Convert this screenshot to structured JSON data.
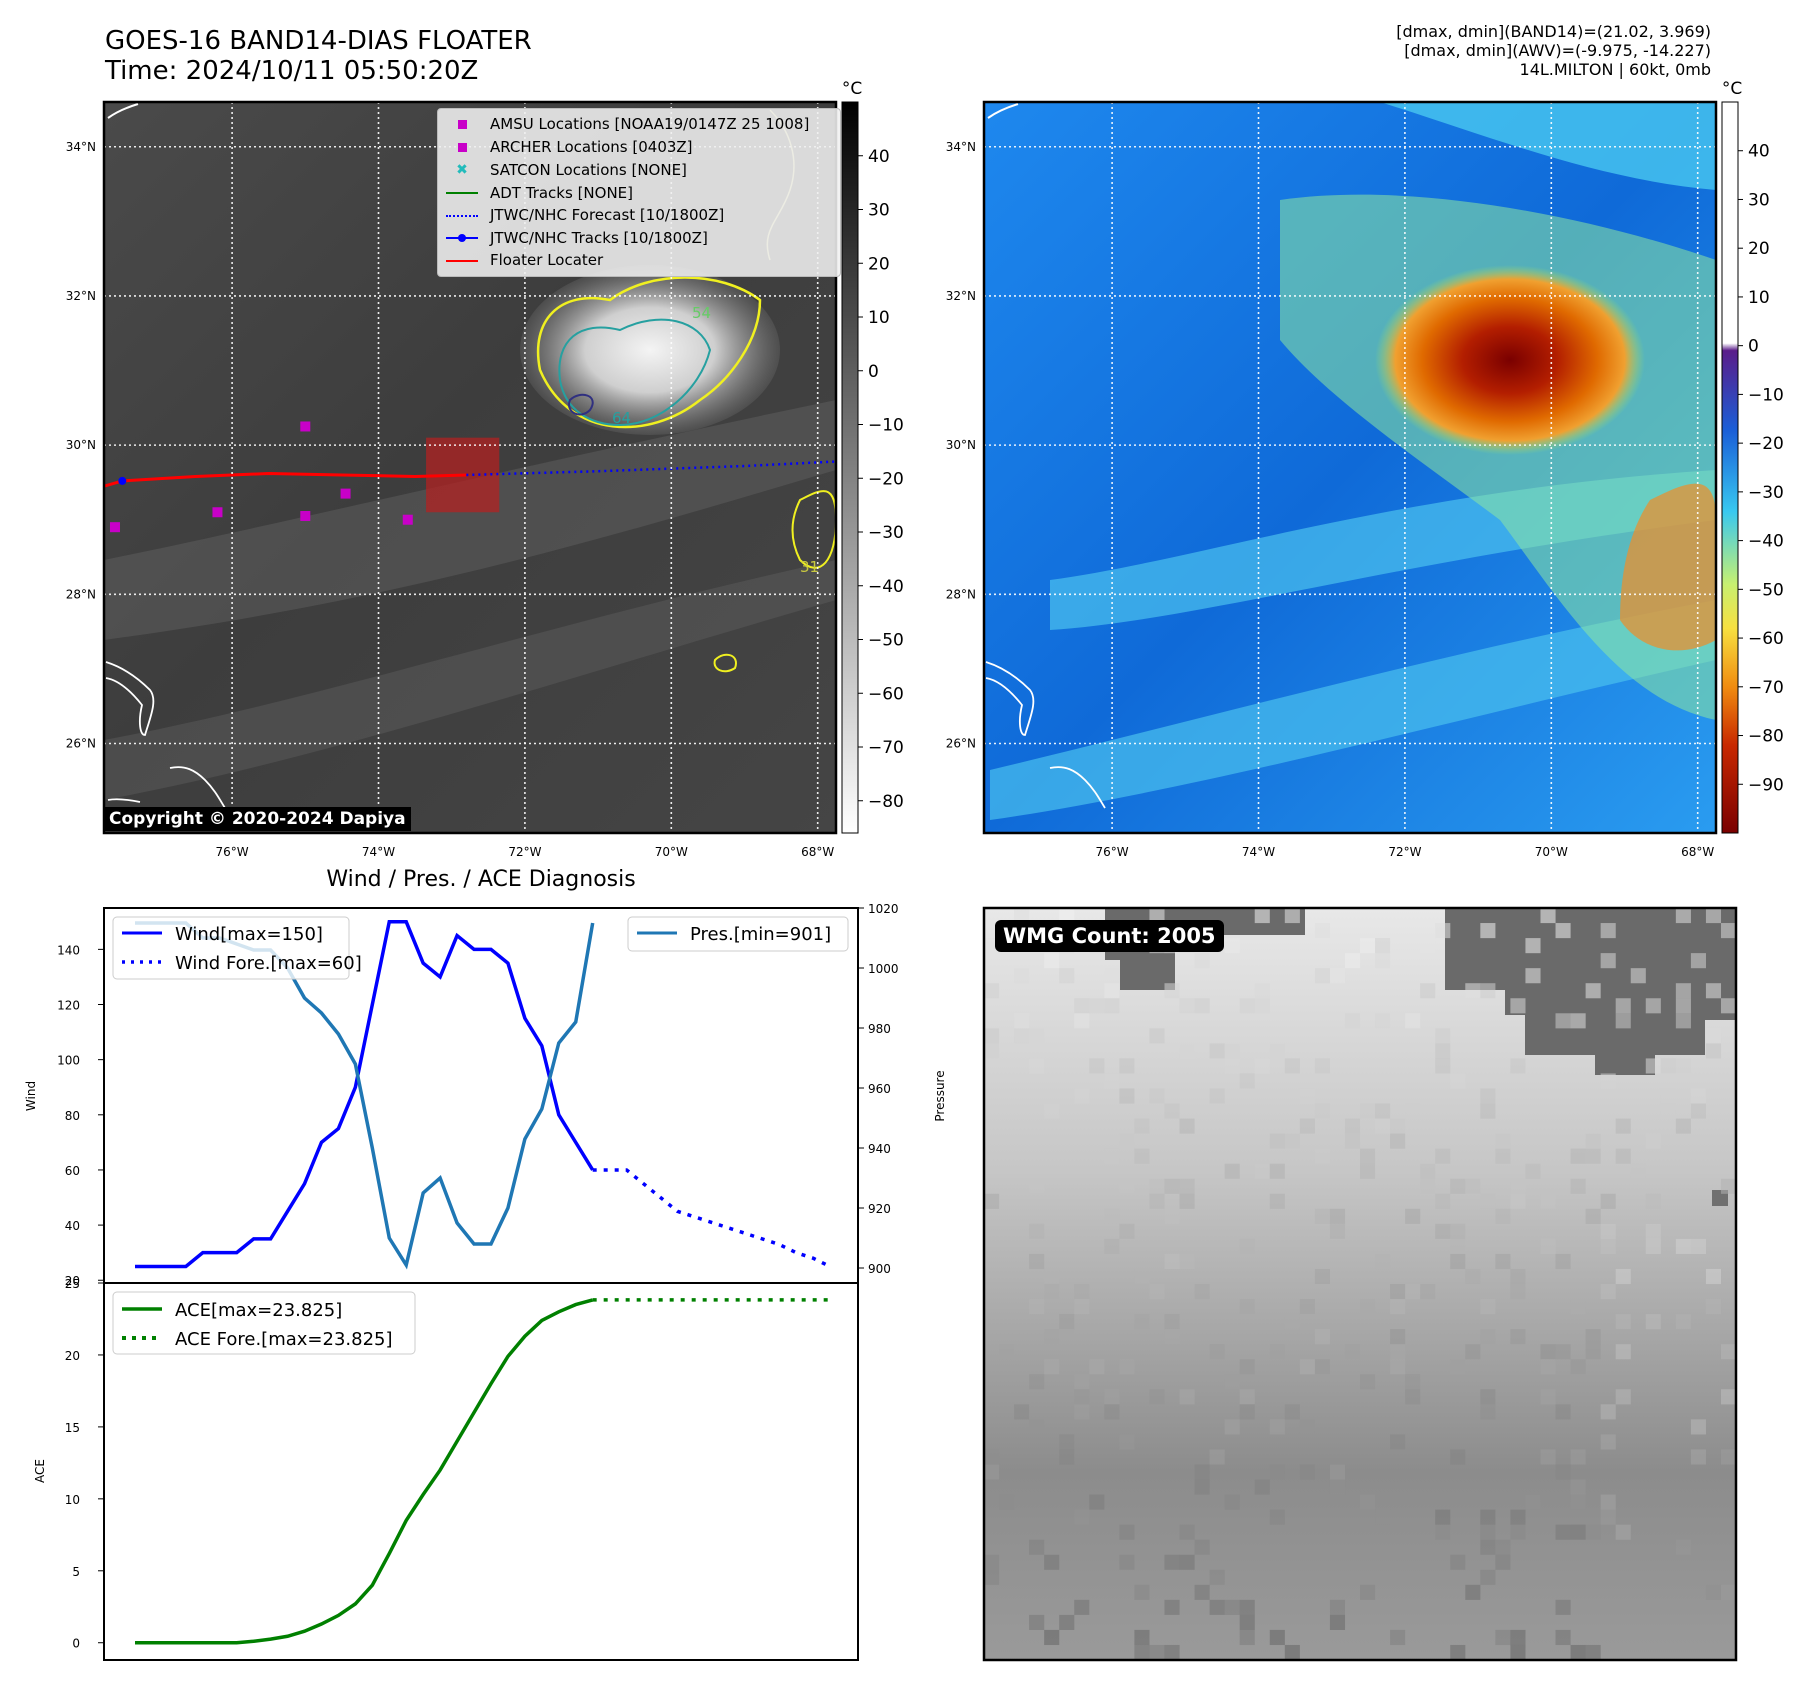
{
  "header": {
    "title_line1": "GOES-16 BAND14-DIAS FLOATER",
    "title_line2": "Time: 2024/10/11 05:50:20Z",
    "info_line1": "[dmax, dmin](BAND14)=(21.02, 3.969)",
    "info_line2": "[dmax, dmin](AWV)=(-9.975, -14.227)",
    "info_line3": "14L.MILTON | 60kt, 0mb"
  },
  "map_axes": {
    "lat_labels": [
      "34°N",
      "32°N",
      "30°N",
      "28°N",
      "26°N"
    ],
    "lat_values": [
      34,
      32,
      30,
      28,
      26
    ],
    "lon_labels": [
      "76°W",
      "74°W",
      "72°W",
      "70°W",
      "68°W"
    ],
    "lon_values": [
      -76,
      -74,
      -72,
      -70,
      -68
    ],
    "lat_range": [
      24.8,
      34.6
    ],
    "lon_range": [
      -77.75,
      -67.75
    ]
  },
  "ir_colorbar": {
    "unit": "°C",
    "ticks": [
      "40",
      "30",
      "20",
      "10",
      "0",
      "−10",
      "−20",
      "−30",
      "−40",
      "−50",
      "−60",
      "−70",
      "−80"
    ],
    "values": [
      40,
      30,
      20,
      10,
      0,
      -10,
      -20,
      -30,
      -40,
      -50,
      -60,
      -70,
      -80
    ],
    "range": [
      50,
      -86
    ]
  },
  "color_colorbar": {
    "unit": "°C",
    "ticks": [
      "40",
      "30",
      "20",
      "10",
      "0",
      "−10",
      "−20",
      "−30",
      "−40",
      "−50",
      "−60",
      "−70",
      "−80",
      "−90"
    ],
    "values": [
      40,
      30,
      20,
      10,
      0,
      -10,
      -20,
      -30,
      -40,
      -50,
      -60,
      -70,
      -80,
      -90
    ],
    "range": [
      50,
      -100
    ]
  },
  "legend": {
    "items": [
      {
        "label": "AMSU Locations [NOAA19/0147Z 25 1008]",
        "symbol": "square",
        "color": "#c800c8"
      },
      {
        "label": "ARCHER Locations [0403Z]",
        "symbol": "square",
        "color": "#c800c8"
      },
      {
        "label": "SATCON Locations [NONE]",
        "symbol": "x",
        "color": "#22bbbb"
      },
      {
        "label": "ADT Tracks [NONE]",
        "symbol": "line",
        "color": "#008000"
      },
      {
        "label": "JTWC/NHC Forecast [10/1800Z]",
        "symbol": "dotted",
        "color": "#0000ff"
      },
      {
        "label": "JTWC/NHC Tracks [10/1800Z]",
        "symbol": "line-dot",
        "color": "#0000ff"
      },
      {
        "label": "Floater Locater",
        "symbol": "line",
        "color": "#ff0000"
      }
    ]
  },
  "map_overlays": {
    "amsu_points": [
      {
        "lon": -75.0,
        "lat": 30.25
      },
      {
        "lon": -77.6,
        "lat": 28.9
      },
      {
        "lon": -76.2,
        "lat": 29.1
      },
      {
        "lon": -75.0,
        "lat": 29.05
      },
      {
        "lon": -74.45,
        "lat": 29.35
      },
      {
        "lon": -73.6,
        "lat": 29.0
      }
    ],
    "track": [
      {
        "lon": -77.75,
        "lat": 29.45
      },
      {
        "lon": -77.5,
        "lat": 29.52
      },
      {
        "lon": -76.5,
        "lat": 29.58
      },
      {
        "lon": -75.5,
        "lat": 29.62
      },
      {
        "lon": -74.5,
        "lat": 29.6
      },
      {
        "lon": -73.5,
        "lat": 29.58
      },
      {
        "lon": -72.8,
        "lat": 29.6
      }
    ],
    "forecast": [
      {
        "lon": -72.8,
        "lat": 29.6
      },
      {
        "lon": -71,
        "lat": 29.65
      },
      {
        "lon": -69,
        "lat": 29.72
      },
      {
        "lon": -67.75,
        "lat": 29.78
      }
    ],
    "track_point": {
      "lon": -77.5,
      "lat": 29.52
    },
    "floater_box": {
      "lon_min": -73.35,
      "lon_max": -72.35,
      "lat_min": 29.1,
      "lat_max": 30.1
    },
    "contour_labels": [
      "54",
      "64",
      "31"
    ],
    "copyright": "Copyright © 2020-2024 Dapiya"
  },
  "diag_title": "Wind / Pres. / ACE Diagnosis",
  "chart_data": [
    {
      "type": "line",
      "title": "Wind / Pres. / ACE Diagnosis",
      "ylabel": "Wind",
      "ylim": [
        19,
        155
      ],
      "y_ticks": [
        20,
        40,
        60,
        80,
        100,
        120,
        140
      ],
      "series": [
        {
          "name": "Wind[max=150]",
          "color": "#0000ff",
          "style": "solid",
          "values": [
            25,
            25,
            25,
            25,
            30,
            30,
            30,
            35,
            35,
            45,
            55,
            70,
            75,
            90,
            120,
            150,
            150,
            135,
            130,
            145,
            140,
            140,
            135,
            115,
            105,
            80,
            70,
            60
          ]
        },
        {
          "name": "Wind Fore.[max=60]",
          "color": "#0000ff",
          "style": "dotted",
          "x_start": 27,
          "values": [
            60,
            60,
            60,
            55,
            50,
            45,
            43,
            41,
            39,
            37,
            35,
            33,
            30,
            28,
            25
          ]
        }
      ]
    },
    {
      "type": "line",
      "ylabel": "Pressure",
      "ylim": [
        895,
        1020
      ],
      "y_ticks": [
        900,
        920,
        940,
        960,
        980,
        1000,
        1020
      ],
      "series": [
        {
          "name": "Pres.[min=901]",
          "color": "#1f77b4",
          "style": "solid",
          "values": [
            1015,
            1015,
            1015,
            1015,
            1010,
            1010,
            1008,
            1006,
            1006,
            1000,
            990,
            985,
            978,
            968,
            940,
            910,
            901,
            925,
            930,
            915,
            908,
            908,
            920,
            943,
            953,
            975,
            982,
            1015
          ]
        }
      ]
    },
    {
      "type": "line",
      "ylabel": "ACE",
      "ylim": [
        -1.2,
        25
      ],
      "y_ticks": [
        0,
        5,
        10,
        15,
        20,
        25
      ],
      "series": [
        {
          "name": "ACE[max=23.825]",
          "color": "#008000",
          "style": "solid",
          "values": [
            0,
            0,
            0,
            0,
            0,
            0,
            0,
            0.1,
            0.25,
            0.45,
            0.8,
            1.3,
            1.9,
            2.7,
            4.0,
            6.2,
            8.5,
            10.3,
            12.0,
            14.0,
            16.0,
            18.0,
            19.9,
            21.3,
            22.4,
            23.0,
            23.5,
            23.825
          ]
        },
        {
          "name": "ACE Fore.[max=23.825]",
          "color": "#008000",
          "style": "dotted",
          "x_start": 27,
          "values": [
            23.825,
            23.825,
            23.825,
            23.825,
            23.825,
            23.825,
            23.825,
            23.825,
            23.825,
            23.825,
            23.825,
            23.825,
            23.825,
            23.825,
            23.825
          ]
        }
      ]
    }
  ],
  "wmg": {
    "label": "WMG Count: 2005"
  },
  "colors": {
    "ir_dark": "#3a3a3a",
    "track": "#ff0000",
    "forecast": "#0000ff",
    "amsu": "#c800c8",
    "coast": "#ffffff"
  }
}
